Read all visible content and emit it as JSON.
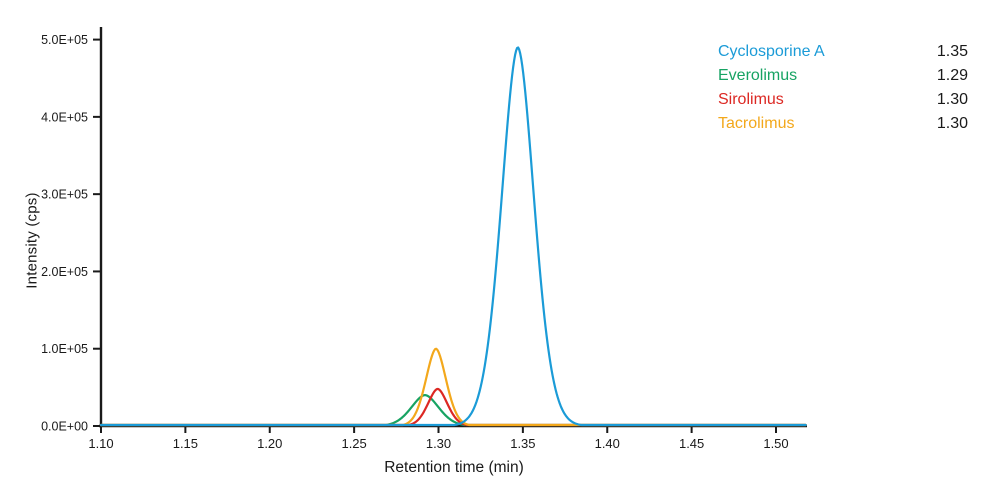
{
  "figure": {
    "background": "#ffffff",
    "axis_color": "#1a1a1a",
    "text_color": "#1a1a1a"
  },
  "chart_data": {
    "type": "line",
    "title": "",
    "xlabel": "Retention time (min)",
    "ylabel": "Intensity (cps)",
    "xlim": [
      1.1,
      1.518
    ],
    "ylim": [
      0,
      515000
    ],
    "x_ticks": [
      1.1,
      1.15,
      1.2,
      1.25,
      1.3,
      1.35,
      1.4,
      1.45,
      1.5
    ],
    "x_tick_labels": [
      "1.10",
      "1.15",
      "1.20",
      "1.25",
      "1.30",
      "1.35",
      "1.40",
      "1.45",
      "1.50"
    ],
    "y_ticks": [
      0,
      100000,
      200000,
      300000,
      400000,
      500000
    ],
    "y_tick_labels": [
      "0.0E+00",
      "1.0E+05",
      "2.0E+05",
      "3.0E+05",
      "4.0E+05",
      "5.0E+05"
    ],
    "grid": false,
    "legend_position": "top-right",
    "series": [
      {
        "name": "Cyclosporine A",
        "color": "#1b9bd7",
        "retention_time_label": "1.35",
        "peak_center": 1.347,
        "peak_height": 490000,
        "peak_sigma": 0.0095,
        "peak_shape": 1.8
      },
      {
        "name": "Everolimus",
        "color": "#17a363",
        "retention_time_label": "1.29",
        "peak_center": 1.292,
        "peak_height": 40000,
        "peak_sigma": 0.008,
        "peak_shape": 1.8
      },
      {
        "name": "Sirolimus",
        "color": "#dc2823",
        "retention_time_label": "1.30",
        "peak_center": 1.2995,
        "peak_height": 48000,
        "peak_sigma": 0.0057,
        "peak_shape": 1.8
      },
      {
        "name": "Tacrolimus",
        "color": "#f3a81c",
        "retention_time_label": "1.30",
        "peak_center": 1.2985,
        "peak_height": 100000,
        "peak_sigma": 0.0059,
        "peak_shape": 1.8
      }
    ],
    "draw_order": [
      "Everolimus",
      "Sirolimus",
      "Tacrolimus",
      "Cyclosporine A"
    ]
  }
}
